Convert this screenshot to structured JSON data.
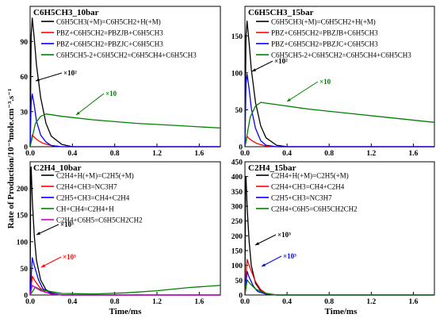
{
  "figure": {
    "ylabel": "Rate of Production/10⁻⁹mole.cm⁻³.s⁻¹",
    "xlabel": "Time/ms"
  },
  "chart_data": [
    {
      "type": "line",
      "title": "C6H5CH3_10bar",
      "xlim": [
        0,
        1.8
      ],
      "ylim": [
        0,
        120
      ],
      "x_ticks": [
        "0.0",
        "0.4",
        "0.8",
        "1.2",
        "1.6"
      ],
      "y_ticks": [
        "0",
        "30",
        "60",
        "90"
      ],
      "legend_position": "top-right",
      "series": [
        {
          "name": "C6H5CH3(+M)=C6H5CH2+H(+M)",
          "color": "#000000",
          "x": [
            0,
            0.01,
            0.02,
            0.04,
            0.06,
            0.1,
            0.15,
            0.2,
            0.3,
            0.4,
            1.8
          ],
          "y": [
            0,
            95,
            110,
            92,
            70,
            42,
            20,
            9,
            2,
            0,
            0
          ]
        },
        {
          "name": "PBZ+C6H5CH2=PBZJB+C6H5CH3",
          "color": "#ff0000",
          "x": [
            0,
            0.02,
            0.04,
            0.08,
            0.12,
            0.2,
            0.3,
            1.8
          ],
          "y": [
            0,
            10,
            8,
            5,
            3,
            1,
            0,
            0
          ]
        },
        {
          "name": "PBZ+C6H5CH2=PBZJC+C6H5CH3",
          "color": "#0000ff",
          "x": [
            0,
            0.01,
            0.02,
            0.04,
            0.06,
            0.1,
            0.15,
            0.2,
            0.3,
            1.8
          ],
          "y": [
            0,
            38,
            45,
            35,
            22,
            10,
            4,
            1,
            0,
            0
          ]
        },
        {
          "name": "C6H5CH5-2+C6H5CH2=C6H5CH4+C6H5CH3",
          "color": "#008000",
          "x": [
            0,
            0.05,
            0.1,
            0.15,
            0.3,
            0.6,
            1.0,
            1.4,
            1.8
          ],
          "y": [
            0,
            20,
            26,
            28,
            26,
            23,
            20,
            18,
            16
          ]
        }
      ],
      "annotations": [
        {
          "text": "×10²",
          "color": "#000000"
        },
        {
          "text": "×10",
          "color": "#008000"
        }
      ]
    },
    {
      "type": "line",
      "title": "C6H5CH3_15bar",
      "xlim": [
        0,
        1.8
      ],
      "ylim": [
        0,
        190
      ],
      "x_ticks": [
        "0.0",
        "0.4",
        "0.8",
        "1.2",
        "1.6"
      ],
      "y_ticks": [
        "0",
        "50",
        "100",
        "150"
      ],
      "legend_position": "top-right",
      "series": [
        {
          "name": "C6H5CH3(+M)=C6H5CH2+H(+M)",
          "color": "#000000",
          "x": [
            0,
            0.01,
            0.02,
            0.04,
            0.06,
            0.1,
            0.15,
            0.2,
            0.3,
            0.4,
            1.8
          ],
          "y": [
            0,
            150,
            170,
            140,
            105,
            60,
            28,
            12,
            2,
            0,
            0
          ]
        },
        {
          "name": "PBZ+C6H5CH2=PBZJB+C6H5CH3",
          "color": "#ff0000",
          "x": [
            0,
            0.02,
            0.04,
            0.08,
            0.12,
            0.2,
            0.3,
            1.8
          ],
          "y": [
            0,
            14,
            11,
            7,
            4,
            1,
            0,
            0
          ]
        },
        {
          "name": "PBZ+C6H5CH2=PBZJC+C6H5CH3",
          "color": "#0000ff",
          "x": [
            0,
            0.01,
            0.02,
            0.04,
            0.06,
            0.1,
            0.15,
            0.2,
            0.3,
            1.8
          ],
          "y": [
            0,
            85,
            98,
            78,
            52,
            25,
            8,
            2,
            0,
            0
          ]
        },
        {
          "name": "C6H5CH5-2+C6H5CH2=C6H5CH4+C6H5CH3",
          "color": "#008000",
          "x": [
            0,
            0.05,
            0.1,
            0.15,
            0.3,
            0.6,
            1.0,
            1.4,
            1.8
          ],
          "y": [
            0,
            40,
            55,
            60,
            57,
            51,
            45,
            39,
            33
          ]
        }
      ],
      "annotations": [
        {
          "text": "×10²",
          "color": "#000000"
        },
        {
          "text": "×10",
          "color": "#008000"
        }
      ]
    },
    {
      "type": "line",
      "title": "C2H4_10bar",
      "xlim": [
        0,
        1.8
      ],
      "ylim": [
        0,
        250
      ],
      "x_ticks": [
        "0.0",
        "0.4",
        "0.8",
        "1.2",
        "1.6"
      ],
      "y_ticks": [
        "0",
        "50",
        "100",
        "150",
        "200"
      ],
      "legend_position": "top-right",
      "series": [
        {
          "name": "C2H4+H(+M)=C2H5(+M)",
          "color": "#000000",
          "x": [
            0,
            0.005,
            0.01,
            0.02,
            0.04,
            0.06,
            0.1,
            0.15,
            0.2,
            0.3,
            1.8
          ],
          "y": [
            0,
            210,
            240,
            180,
            110,
            65,
            28,
            10,
            4,
            0,
            0
          ]
        },
        {
          "name": "C2H4+CH3=NC3H7",
          "color": "#ff0000",
          "x": [
            0,
            0.02,
            0.05,
            0.1,
            0.15,
            0.2,
            0.3,
            1.8
          ],
          "y": [
            0,
            35,
            25,
            12,
            5,
            2,
            0,
            0
          ]
        },
        {
          "name": "C2H5+CH3=CH4+C2H4",
          "color": "#0000ff",
          "x": [
            0,
            0.02,
            0.04,
            0.08,
            0.12,
            0.2,
            0.3,
            1.8
          ],
          "y": [
            0,
            70,
            55,
            28,
            12,
            3,
            0,
            0
          ]
        },
        {
          "name": "CH+CH4=C2H4+H",
          "color": "#008000",
          "x": [
            0,
            0.05,
            0.1,
            0.3,
            0.6,
            0.9,
            1.2,
            1.5,
            1.8
          ],
          "y": [
            0,
            15,
            10,
            3,
            2,
            4,
            8,
            14,
            18
          ]
        },
        {
          "name": "C2H4+C6H5=C6H5CH2CH2",
          "color": "#cc00cc",
          "x": [
            0,
            0.02,
            0.05,
            0.1,
            0.2,
            0.3,
            1.8
          ],
          "y": [
            0,
            18,
            14,
            8,
            2,
            0,
            0
          ]
        }
      ],
      "annotations": [
        {
          "text": "×10³",
          "color": "#000000"
        },
        {
          "text": "×10³",
          "color": "#ff0000"
        }
      ]
    },
    {
      "type": "line",
      "title": "C2H4_15bar",
      "xlim": [
        0,
        1.8
      ],
      "ylim": [
        0,
        450
      ],
      "x_ticks": [
        "0.0",
        "0.4",
        "0.8",
        "1.2",
        "1.6"
      ],
      "y_ticks": [
        "0",
        "50",
        "100",
        "150",
        "200",
        "250",
        "300",
        "350",
        "400",
        "450"
      ],
      "legend_position": "top-right",
      "series": [
        {
          "name": "C2H4+H(+M)=C2H5(+M)",
          "color": "#000000",
          "x": [
            0,
            0.005,
            0.01,
            0.02,
            0.04,
            0.06,
            0.1,
            0.15,
            0.2,
            0.3,
            1.8
          ],
          "y": [
            0,
            380,
            400,
            300,
            180,
            100,
            40,
            14,
            5,
            0,
            0
          ]
        },
        {
          "name": "C2H4+CH3=CH4+C2H4",
          "color": "#ff0000",
          "x": [
            0,
            0.02,
            0.05,
            0.1,
            0.15,
            0.2,
            0.3,
            1.8
          ],
          "y": [
            0,
            120,
            90,
            45,
            18,
            6,
            0,
            0
          ]
        },
        {
          "name": "C2H5+CH3=NC3H7",
          "color": "#0000ff",
          "x": [
            0,
            0.02,
            0.04,
            0.08,
            0.12,
            0.2,
            0.3,
            1.8
          ],
          "y": [
            0,
            80,
            60,
            30,
            12,
            3,
            0,
            0
          ]
        },
        {
          "name": "C2H4+C6H5=C6H5CH2CH2",
          "color": "#008000",
          "x": [
            0,
            0.02,
            0.05,
            0.1,
            0.2,
            0.3,
            1.8
          ],
          "y": [
            0,
            50,
            38,
            20,
            5,
            0,
            0
          ]
        }
      ],
      "annotations": [
        {
          "text": "×10³",
          "color": "#000000"
        },
        {
          "text": "×10³",
          "color": "#0000ff"
        }
      ]
    }
  ]
}
